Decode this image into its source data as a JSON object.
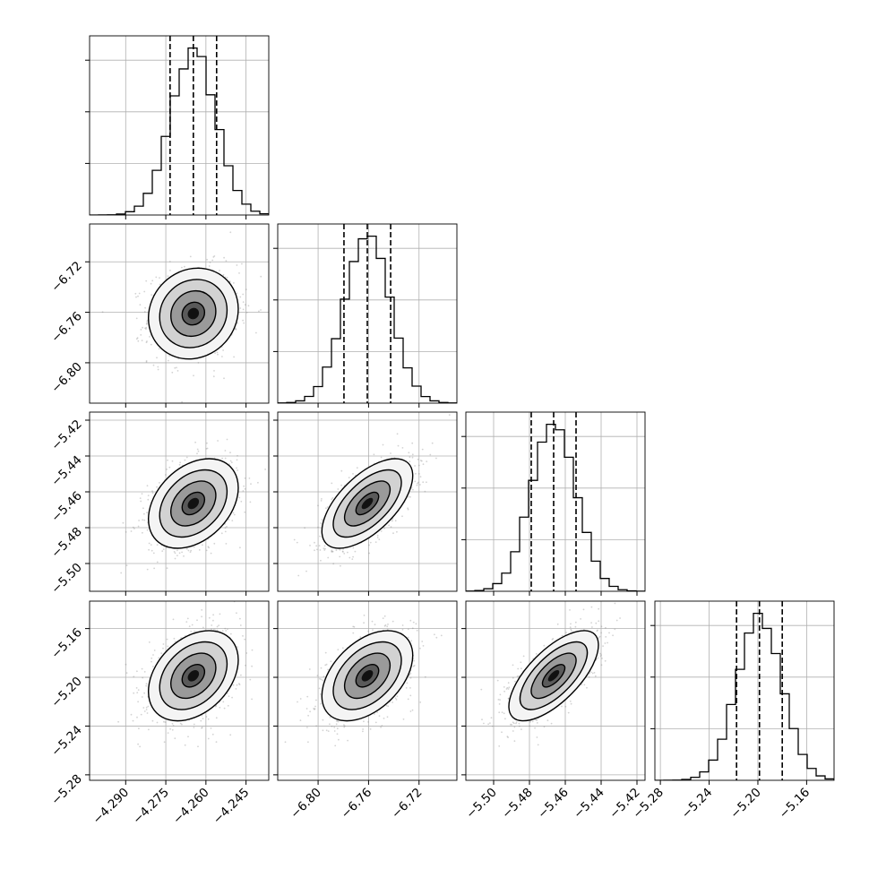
{
  "chart_data": {
    "type": "corner",
    "n_params": 4,
    "colors": {
      "hist": "#000000",
      "contour": "#000000",
      "quantile_line": "#000000",
      "scatter": "#808080",
      "grid": "#b0b0b0"
    },
    "grid": true,
    "quantile_lines_dashed": true,
    "parameters": [
      {
        "id": "p1",
        "range": [
          -4.3035,
          -4.2365
        ],
        "median": -4.2647,
        "std": 0.0084,
        "quantiles": [
          -4.2734,
          -4.2647,
          -4.256
        ],
        "ticks": [
          -4.29,
          -4.275,
          -4.26,
          -4.245
        ],
        "tick_labels": [
          "−4.290",
          "−4.275",
          "−4.260",
          "−4.245"
        ]
      },
      {
        "id": "p2",
        "range": [
          -6.832,
          -6.69
        ],
        "median": -6.761,
        "std": 0.018,
        "quantiles": [
          -6.7795,
          -6.761,
          -6.7425
        ],
        "ticks": [
          -6.8,
          -6.76,
          -6.72
        ],
        "tick_labels": [
          "−6.80",
          "−6.76",
          "−6.72"
        ]
      },
      {
        "id": "p3",
        "range": [
          -5.5155,
          -5.4155
        ],
        "median": -5.4665,
        "std": 0.0125,
        "quantiles": [
          -5.479,
          -5.4665,
          -5.454
        ],
        "ticks": [
          -5.5,
          -5.48,
          -5.46,
          -5.44,
          -5.42
        ],
        "tick_labels": [
          "−5.50",
          "−5.48",
          "−5.46",
          "−5.44",
          "−5.42"
        ]
      },
      {
        "id": "p4",
        "range": [
          -5.2845,
          -5.1375
        ],
        "median": -5.1987,
        "std": 0.0185,
        "quantiles": [
          -5.2175,
          -5.1987,
          -5.18
        ],
        "ticks": [
          -5.28,
          -5.24,
          -5.2,
          -5.16
        ],
        "tick_labels": [
          "−5.28",
          "−5.24",
          "−5.20",
          "−5.16"
        ]
      }
    ],
    "correlations": {
      "p1-p2": 0.1,
      "p1-p3": 0.35,
      "p1-p4": 0.35,
      "p2-p3": 0.62,
      "p2-p4": 0.45,
      "p3-p4": 0.68
    },
    "contour_levels_sigma": [
      0.5,
      1.0,
      1.5,
      2.0
    ]
  }
}
